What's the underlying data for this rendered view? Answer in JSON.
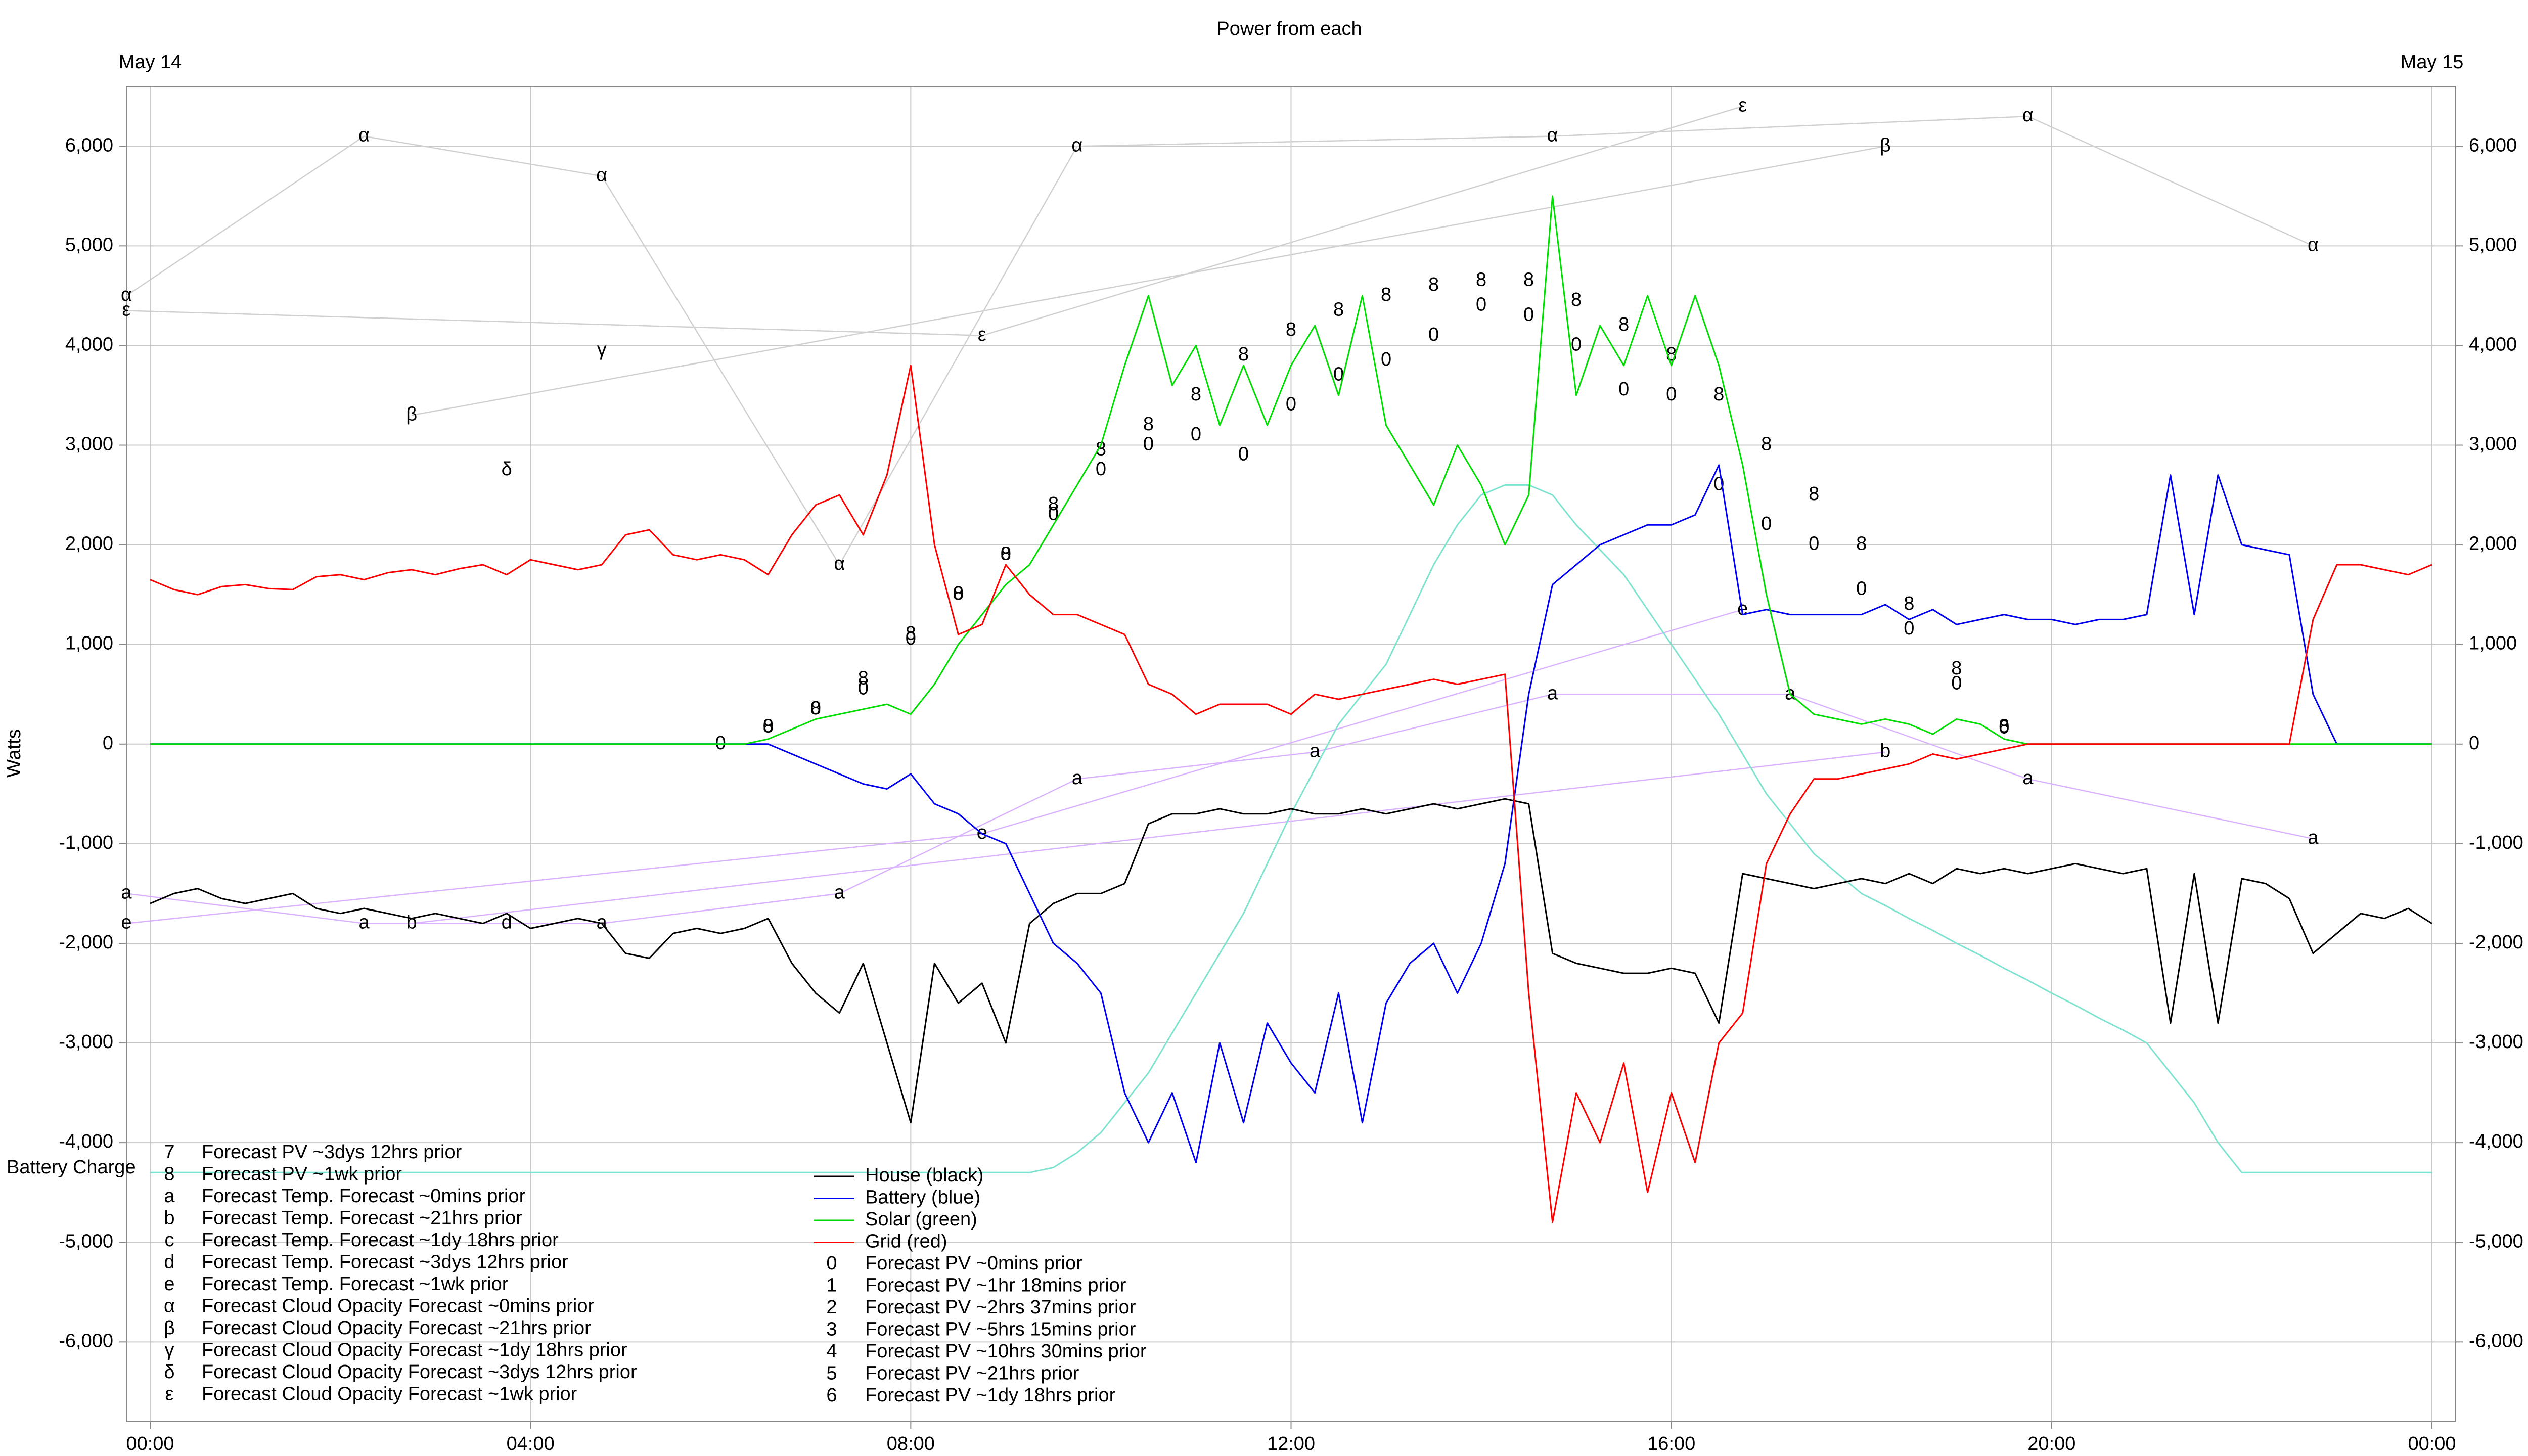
{
  "chart_data": {
    "type": "line",
    "title": "Power from each",
    "y_label": "Watts",
    "date_labels": [
      {
        "value": 0,
        "label": "May 14"
      },
      {
        "value": 24,
        "label": "May 15"
      }
    ],
    "xlim": [
      -0.25,
      24.25
    ],
    "ylim": [
      -6800,
      6600
    ],
    "xticks": [
      {
        "value": 0,
        "label": "00:00"
      },
      {
        "value": 4,
        "label": "04:00"
      },
      {
        "value": 8,
        "label": "08:00"
      },
      {
        "value": 12,
        "label": "12:00"
      },
      {
        "value": 16,
        "label": "16:00"
      },
      {
        "value": 20,
        "label": "20:00"
      },
      {
        "value": 24,
        "label": "00:00"
      }
    ],
    "yticks": [
      {
        "value": -6000,
        "label": "-6,000"
      },
      {
        "value": -5000,
        "label": "-5,000"
      },
      {
        "value": -4000,
        "label": "-4,000"
      },
      {
        "value": -3000,
        "label": "-3,000"
      },
      {
        "value": -2000,
        "label": "-2,000"
      },
      {
        "value": -1000,
        "label": "-1,000"
      },
      0,
      {
        "value": 1000,
        "label": "1,000"
      },
      {
        "value": 2000,
        "label": "2,000"
      },
      {
        "value": 3000,
        "label": "3,000"
      },
      {
        "value": 4000,
        "label": "4,000"
      },
      {
        "value": 5000,
        "label": "5,000"
      },
      {
        "value": 6000,
        "label": "6,000"
      }
    ],
    "grid": true,
    "x": [
      0,
      0.25,
      0.5,
      0.75,
      1,
      1.25,
      1.5,
      1.75,
      2,
      2.25,
      2.5,
      2.75,
      3,
      3.25,
      3.5,
      3.75,
      4,
      4.25,
      4.5,
      4.75,
      5,
      5.25,
      5.5,
      5.75,
      6,
      6.25,
      6.5,
      6.75,
      7,
      7.25,
      7.5,
      7.75,
      8,
      8.25,
      8.5,
      8.75,
      9,
      9.25,
      9.5,
      9.75,
      10,
      10.25,
      10.5,
      10.75,
      11,
      11.25,
      11.5,
      11.75,
      12,
      12.25,
      12.5,
      12.75,
      13,
      13.25,
      13.5,
      13.75,
      14,
      14.25,
      14.5,
      14.75,
      15,
      15.25,
      15.5,
      15.75,
      16,
      16.25,
      16.5,
      16.75,
      17,
      17.25,
      17.5,
      17.75,
      18,
      18.25,
      18.5,
      18.75,
      19,
      19.25,
      19.5,
      19.75,
      20,
      20.25,
      20.5,
      20.75,
      21,
      21.25,
      21.5,
      21.75,
      22,
      22.25,
      22.5,
      22.75,
      23,
      23.25,
      23.5,
      23.75,
      24
    ],
    "series": [
      {
        "name": "Battery Charge",
        "color": "#7fe3cf",
        "values": [
          -4300,
          -4300,
          -4300,
          -4300,
          -4300,
          -4300,
          -4300,
          -4300,
          -4300,
          -4300,
          -4300,
          -4300,
          -4300,
          -4300,
          -4300,
          -4300,
          -4300,
          -4300,
          -4300,
          -4300,
          -4300,
          -4300,
          -4300,
          -4300,
          -4300,
          -4300,
          -4300,
          -4300,
          -4300,
          -4300,
          -4300,
          -4300,
          -4300,
          -4300,
          -4300,
          -4300,
          -4300,
          -4300,
          -4250,
          -4100,
          -3900,
          -3600,
          -3300,
          -2900,
          -2500,
          -2100,
          -1700,
          -1200,
          -700,
          -250,
          200,
          500,
          800,
          1300,
          1800,
          2200,
          2500,
          2600,
          2600,
          2500,
          2200,
          1950,
          1700,
          1350,
          1000,
          650,
          300,
          -100,
          -500,
          -800,
          -1100,
          -1300,
          -1500,
          -1620,
          -1750,
          -1870,
          -2000,
          -2120,
          -2250,
          -2370,
          -2500,
          -2620,
          -2750,
          -2870,
          -3000,
          -3300,
          -3600,
          -4000,
          -4300,
          -4300,
          -4300,
          -4300,
          -4300,
          -4300,
          -4300,
          -4300,
          -4300
        ]
      },
      {
        "name": "House (black)",
        "color": "#000000",
        "values": [
          -1600,
          -1500,
          -1450,
          -1550,
          -1600,
          -1550,
          -1500,
          -1650,
          -1700,
          -1650,
          -1700,
          -1750,
          -1700,
          -1750,
          -1800,
          -1700,
          -1850,
          -1800,
          -1750,
          -1800,
          -2100,
          -2150,
          -1900,
          -1850,
          -1900,
          -1850,
          -1750,
          -2200,
          -2500,
          -2700,
          -2200,
          -3000,
          -3800,
          -2200,
          -2600,
          -2400,
          -3000,
          -1800,
          -1600,
          -1500,
          -1500,
          -1400,
          -800,
          -700,
          -700,
          -650,
          -700,
          -700,
          -650,
          -700,
          -700,
          -650,
          -700,
          -650,
          -600,
          -650,
          -600,
          -550,
          -600,
          -2100,
          -2200,
          -2250,
          -2300,
          -2300,
          -2250,
          -2300,
          -2800,
          -1300,
          -1350,
          -1400,
          -1450,
          -1400,
          -1350,
          -1400,
          -1300,
          -1400,
          -1250,
          -1300,
          -1250,
          -1300,
          -1250,
          -1200,
          -1250,
          -1300,
          -1250,
          -2800,
          -1300,
          -2800,
          -1350,
          -1400,
          -1550,
          -2100,
          -1900,
          -1700,
          -1750,
          -1650,
          -1800
        ]
      },
      {
        "name": "Battery (blue)",
        "color": "#0000ee",
        "values": [
          0,
          0,
          0,
          0,
          0,
          0,
          0,
          0,
          0,
          0,
          0,
          0,
          0,
          0,
          0,
          0,
          0,
          0,
          0,
          0,
          0,
          0,
          0,
          0,
          0,
          0,
          0,
          -100,
          -200,
          -300,
          -400,
          -450,
          -300,
          -600,
          -700,
          -900,
          -1000,
          -1500,
          -2000,
          -2200,
          -2500,
          -3500,
          -4000,
          -3500,
          -4200,
          -3000,
          -3800,
          -2800,
          -3200,
          -3500,
          -2500,
          -3800,
          -2600,
          -2200,
          -2000,
          -2500,
          -2000,
          -1200,
          500,
          1600,
          1800,
          2000,
          2100,
          2200,
          2200,
          2300,
          2800,
          1300,
          1350,
          1300,
          1300,
          1300,
          1300,
          1400,
          1250,
          1350,
          1200,
          1250,
          1300,
          1250,
          1250,
          1200,
          1250,
          1250,
          1300,
          2700,
          1300,
          2700,
          2000,
          1950,
          1900,
          500,
          0,
          0,
          0,
          0,
          0
        ]
      },
      {
        "name": "Solar (green)",
        "color": "#00dd00",
        "values": [
          0,
          0,
          0,
          0,
          0,
          0,
          0,
          0,
          0,
          0,
          0,
          0,
          0,
          0,
          0,
          0,
          0,
          0,
          0,
          0,
          0,
          0,
          0,
          0,
          0,
          0,
          50,
          150,
          250,
          300,
          350,
          400,
          300,
          600,
          1000,
          1300,
          1600,
          1800,
          2200,
          2600,
          3000,
          3800,
          4500,
          3600,
          4000,
          3200,
          3800,
          3200,
          3800,
          4200,
          3500,
          4500,
          3200,
          2800,
          2400,
          3000,
          2600,
          2000,
          2500,
          5500,
          3500,
          4200,
          3800,
          4500,
          3800,
          4500,
          3800,
          2800,
          1500,
          500,
          300,
          250,
          200,
          250,
          200,
          100,
          250,
          200,
          50,
          0,
          0,
          0,
          0,
          0,
          0,
          0,
          0,
          0,
          0,
          0,
          0,
          0,
          0,
          0,
          0,
          0,
          0
        ]
      },
      {
        "name": "Grid (red)",
        "color": "#ff0000",
        "values": [
          1650,
          1550,
          1500,
          1580,
          1600,
          1560,
          1550,
          1680,
          1700,
          1650,
          1720,
          1750,
          1700,
          1760,
          1800,
          1700,
          1850,
          1800,
          1750,
          1800,
          2100,
          2150,
          1900,
          1850,
          1900,
          1850,
          1700,
          2100,
          2400,
          2500,
          2100,
          2700,
          3800,
          2000,
          1100,
          1200,
          1800,
          1500,
          1300,
          1300,
          1200,
          1100,
          600,
          500,
          300,
          400,
          400,
          400,
          300,
          500,
          450,
          500,
          550,
          600,
          650,
          600,
          650,
          700,
          -2500,
          -4800,
          -3500,
          -4000,
          -3200,
          -4500,
          -3500,
          -4200,
          -3000,
          -2700,
          -1200,
          -700,
          -350,
          -350,
          -300,
          -250,
          -200,
          -100,
          -150,
          -100,
          -50,
          0,
          0,
          0,
          0,
          0,
          0,
          0,
          0,
          0,
          0,
          0,
          0,
          1250,
          1800,
          1800,
          1750,
          1700,
          1800
        ]
      }
    ],
    "forecasts": [
      {
        "symbol": "7",
        "name": "Forecast PV ~3dys 12hrs prior",
        "x": [],
        "values": []
      },
      {
        "symbol": "8",
        "name": "Forecast PV ~1wk prior",
        "x": [
          6.5,
          7,
          7.5,
          8,
          8.5,
          9,
          9.5,
          10,
          10.5,
          11,
          11.5,
          12,
          12.5,
          13,
          13.5,
          14,
          14.5,
          15,
          15.5,
          16,
          16.5,
          17,
          17.5,
          18,
          18.5,
          19,
          19.5
        ],
        "values": [
          170,
          350,
          650,
          1100,
          1500,
          1900,
          2400,
          2950,
          3200,
          3500,
          3900,
          4150,
          4350,
          4500,
          4600,
          4650,
          4650,
          4450,
          4200,
          3900,
          3500,
          3000,
          2500,
          2000,
          1400,
          750,
          170
        ]
      },
      {
        "symbol": "a",
        "name": "Forecast Temp. Forecast ~0mins prior",
        "x": [
          -0.25,
          2.25,
          4.75,
          7.25,
          9.75,
          12.25,
          14.75,
          17.25,
          19.75,
          22.75
        ],
        "values": [
          -1500,
          -1800,
          -1800,
          -1500,
          -350,
          -80,
          500,
          500,
          -350,
          -950
        ]
      },
      {
        "symbol": "b",
        "name": "Forecast Temp. Forecast ~21hrs prior",
        "x": [
          2.75,
          18.25
        ],
        "values": [
          -1800,
          -80
        ]
      },
      {
        "symbol": "c",
        "name": "Forecast Temp. Forecast ~1dy 18hrs prior",
        "x": [],
        "values": []
      },
      {
        "symbol": "d",
        "name": "Forecast Temp. Forecast ~3dys 12hrs prior",
        "x": [
          3.75
        ],
        "values": [
          -1800
        ]
      },
      {
        "symbol": "e",
        "name": "Forecast Temp. Forecast ~1wk prior",
        "x": [
          -0.25,
          8.75,
          16.75
        ],
        "values": [
          -1800,
          -900,
          1350
        ]
      },
      {
        "symbol": "α",
        "name": "Forecast Cloud Opacity Forecast ~0mins prior",
        "x": [
          -0.25,
          2.25,
          4.75,
          7.25,
          9.75,
          14.75,
          19.75,
          22.75
        ],
        "values": [
          4500,
          6100,
          5700,
          1800,
          6000,
          6100,
          6300,
          5000
        ]
      },
      {
        "symbol": "β",
        "name": "Forecast Cloud Opacity Forecast ~21hrs prior",
        "x": [
          2.75,
          18.25
        ],
        "values": [
          3300,
          6000
        ]
      },
      {
        "symbol": "γ",
        "name": "Forecast Cloud Opacity Forecast ~1dy 18hrs prior",
        "x": [
          4.75
        ],
        "values": [
          3950
        ]
      },
      {
        "symbol": "δ",
        "name": "Forecast Cloud Opacity Forecast ~3dys 12hrs prior",
        "x": [
          3.75
        ],
        "values": [
          2750
        ]
      },
      {
        "symbol": "ε",
        "name": "Forecast Cloud Opacity Forecast ~1wk prior",
        "x": [
          -0.25,
          8.75,
          16.75
        ],
        "values": [
          4350,
          4100,
          6400
        ]
      },
      {
        "symbol": "0",
        "name": "Forecast PV ~0mins prior",
        "x": [
          6,
          6.5,
          7,
          7.5,
          8,
          8.5,
          9,
          9.5,
          10,
          10.5,
          11,
          11.5,
          12,
          12.5,
          13,
          13.5,
          14,
          14.5,
          15,
          15.5,
          16,
          16.5,
          17,
          17.5,
          18,
          18.5,
          19,
          19.5
        ],
        "values": [
          0,
          170,
          350,
          550,
          1050,
          1500,
          1900,
          2300,
          2750,
          3000,
          3100,
          2900,
          3400,
          3700,
          3850,
          4100,
          4400,
          4300,
          4000,
          3550,
          3500,
          2600,
          2200,
          2000,
          1550,
          1150,
          600,
          160
        ]
      },
      {
        "symbol": "1",
        "name": "Forecast PV ~1hr 18mins prior",
        "x": [],
        "values": []
      },
      {
        "symbol": "2",
        "name": "Forecast PV ~2hrs 37mins prior",
        "x": [],
        "values": []
      },
      {
        "symbol": "3",
        "name": "Forecast PV ~5hrs 15mins prior",
        "x": [],
        "values": []
      },
      {
        "symbol": "4",
        "name": "Forecast PV ~10hrs 30mins prior",
        "x": [],
        "values": []
      },
      {
        "symbol": "5",
        "name": "Forecast PV ~21hrs prior",
        "x": [],
        "values": []
      },
      {
        "symbol": "6",
        "name": "Forecast PV ~1dy 18hrs prior",
        "x": [],
        "values": []
      }
    ]
  }
}
